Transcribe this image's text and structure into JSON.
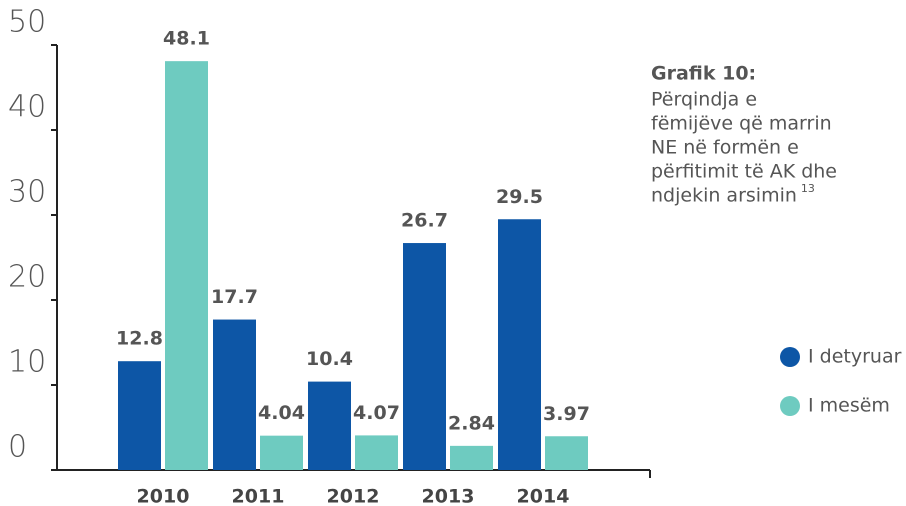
{
  "chart_data": {
    "type": "bar",
    "title": "Grafik 10:",
    "subtitle": [
      "Përqindja e",
      "fëmijëve që marrin",
      "NE në formën e",
      "përfitimit të AK dhe",
      "ndjekin  arsimin"
    ],
    "footnote_ref": "13",
    "categories": [
      "2010",
      "2011",
      "2012",
      "2013",
      "2014"
    ],
    "series": [
      {
        "name": "I detyruar",
        "color": "#0d56a6",
        "values": [
          12.8,
          17.7,
          10.4,
          26.7,
          29.5
        ]
      },
      {
        "name": "I mesëm",
        "color": "#6ecbc0",
        "values": [
          48.1,
          4.04,
          4.07,
          2.84,
          3.97
        ]
      }
    ],
    "ylim": [
      0,
      50
    ],
    "yticks": [
      0,
      10,
      20,
      30,
      40,
      50
    ],
    "legend": "right"
  }
}
